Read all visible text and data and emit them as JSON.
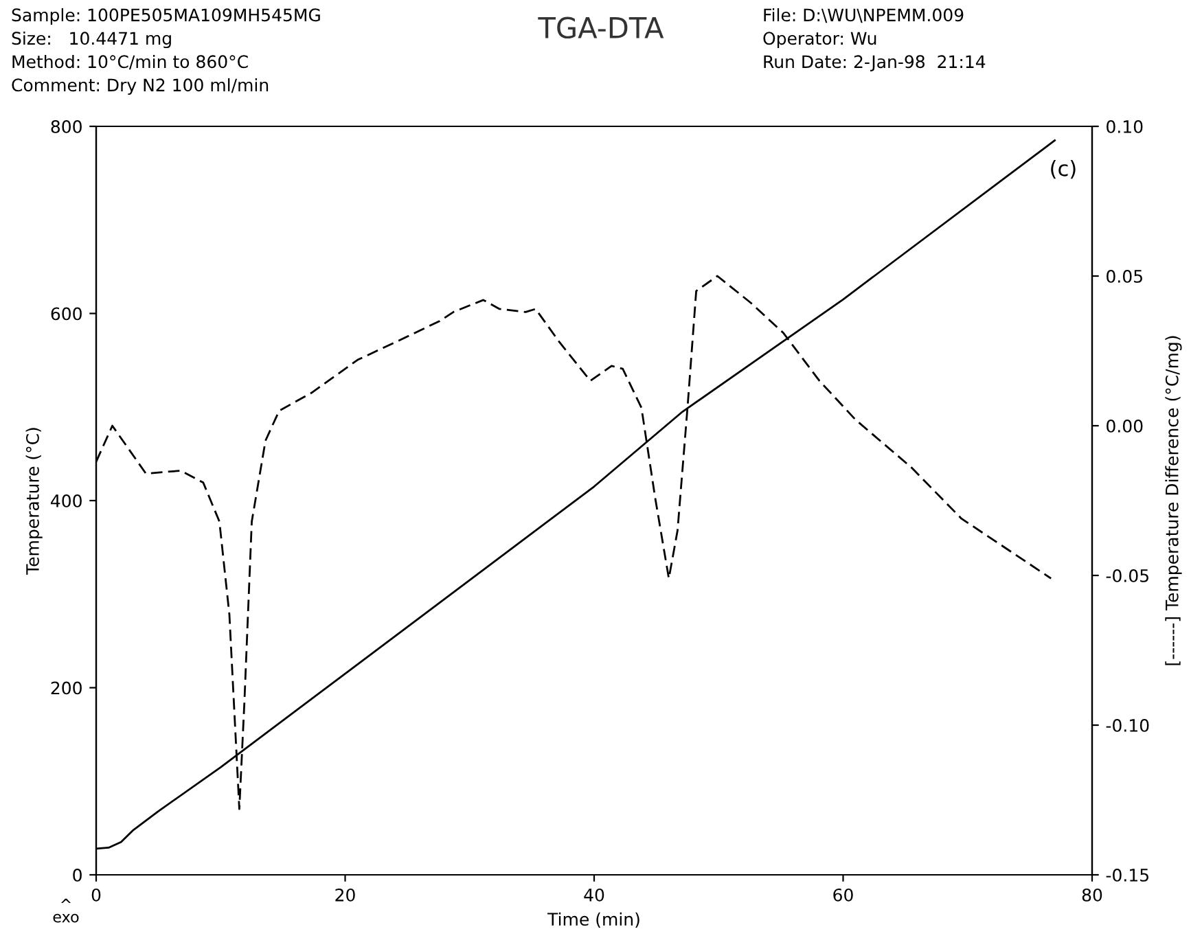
{
  "chart_data": {
    "type": "line",
    "title": "TGA-DTA",
    "xlabel": "Time (min)",
    "ylabel": "Temperature (°C)",
    "y2label": "[------] Temperature Difference (°C/mg)",
    "xlim": [
      0,
      80
    ],
    "xticks": [
      0,
      20,
      40,
      60,
      80
    ],
    "ylim": [
      0,
      800
    ],
    "yticks": [
      0,
      200,
      400,
      600,
      800
    ],
    "y2lim": [
      -0.15,
      0.1
    ],
    "y2ticks": [
      {
        "value": -0.15,
        "label": "-0.15"
      },
      {
        "value": -0.1,
        "label": "-0.10"
      },
      {
        "value": -0.05,
        "label": "-0.05"
      },
      {
        "value": 0.0,
        "label": "0.00"
      },
      {
        "value": 0.05,
        "label": "0.05"
      },
      {
        "value": 0.1,
        "label": "0.10"
      }
    ],
    "grid": false,
    "legend": false,
    "annotations": [
      "Sample: 100PE505MA109MH545MG",
      "Size:   10.4471 mg",
      "Method: 10°C/min to 860°C",
      "Comment: Dry N2 100 ml/min",
      "File: D:\\WU\\NPEMM.009",
      "Operator: Wu",
      "Run Date: 2-Jan-98  21:14",
      "(c)",
      "^\nexo"
    ],
    "series": [
      {
        "color": "#000000",
        "line_style": "solid",
        "axis": "y",
        "x": [
          0,
          1,
          2,
          3,
          5,
          10,
          20,
          30,
          40,
          47.1,
          60,
          77
        ],
        "values": [
          28,
          29,
          35,
          48,
          68,
          115,
          215,
          315,
          415,
          495,
          615,
          785
        ]
      },
      {
        "color": "#000000",
        "line_style": "dashed",
        "axis": "y2",
        "x": [
          0,
          1.3,
          4.0,
          6.8,
          8.6,
          9.9,
          10.7,
          11.5,
          11.9,
          12.5,
          13.6,
          14.7,
          17.3,
          21,
          24.6,
          27.6,
          28.7,
          31.1,
          32.4,
          34.5,
          35.3,
          37.2,
          39.7,
          41.4,
          42.3,
          43.8,
          44.9,
          46.0,
          46.7,
          47.5,
          48.2,
          49.9,
          52.6,
          55.2,
          58.1,
          61.0,
          65.5,
          69.5,
          76.7
        ],
        "values": [
          -0.012,
          0.0,
          -0.016,
          -0.015,
          -0.019,
          -0.032,
          -0.063,
          -0.128,
          -0.093,
          -0.032,
          -0.005,
          0.005,
          0.011,
          0.022,
          0.029,
          0.035,
          0.038,
          0.042,
          0.039,
          0.038,
          0.039,
          0.028,
          0.015,
          0.02,
          0.019,
          0.006,
          -0.024,
          -0.051,
          -0.035,
          0.006,
          0.045,
          0.05,
          0.041,
          0.031,
          0.015,
          0.002,
          -0.014,
          -0.031,
          -0.051
        ]
      }
    ]
  }
}
